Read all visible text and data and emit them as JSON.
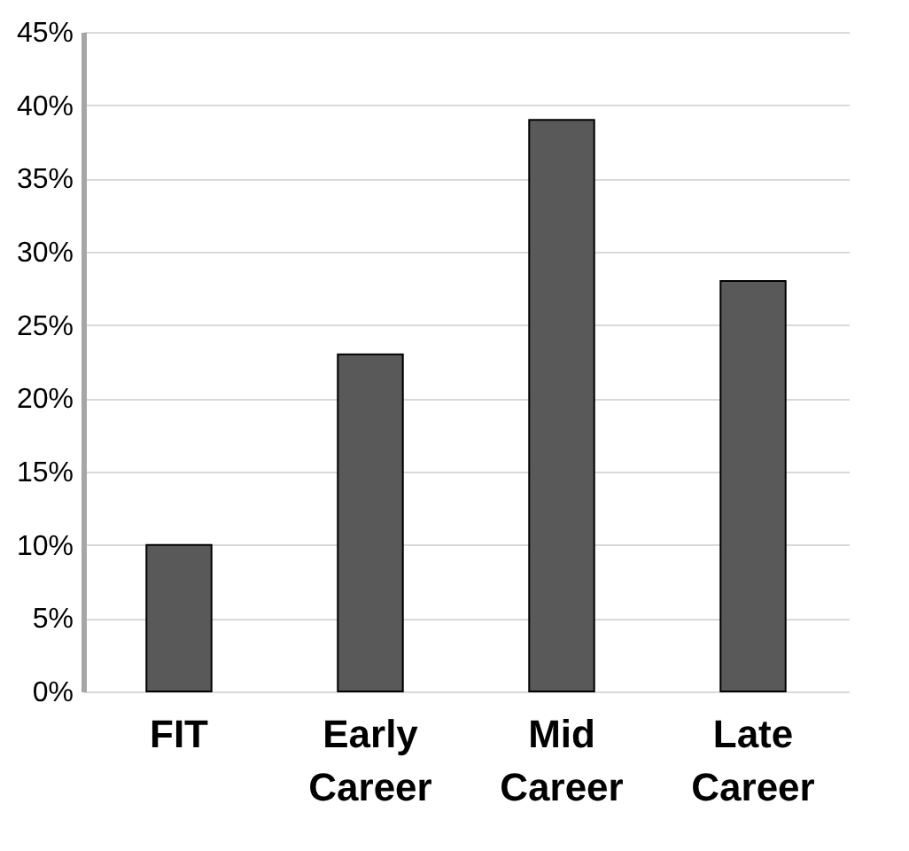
{
  "chart_data": {
    "type": "bar",
    "categories": [
      "FIT",
      "Early Career",
      "Mid Career",
      "Late Career"
    ],
    "values": [
      10,
      23,
      39,
      28
    ],
    "color": "#595959",
    "ylim": [
      0,
      45
    ],
    "yticks": [
      {
        "value": 0,
        "label": "0%"
      },
      {
        "value": 5,
        "label": "5%"
      },
      {
        "value": 10,
        "label": "10%"
      },
      {
        "value": 15,
        "label": "15%"
      },
      {
        "value": 20,
        "label": "20%"
      },
      {
        "value": 25,
        "label": "25%"
      },
      {
        "value": 30,
        "label": "30%"
      },
      {
        "value": 35,
        "label": "35%"
      },
      {
        "value": 40,
        "label": "40%"
      },
      {
        "value": 45,
        "label": "45%"
      }
    ],
    "grid": "y"
  }
}
